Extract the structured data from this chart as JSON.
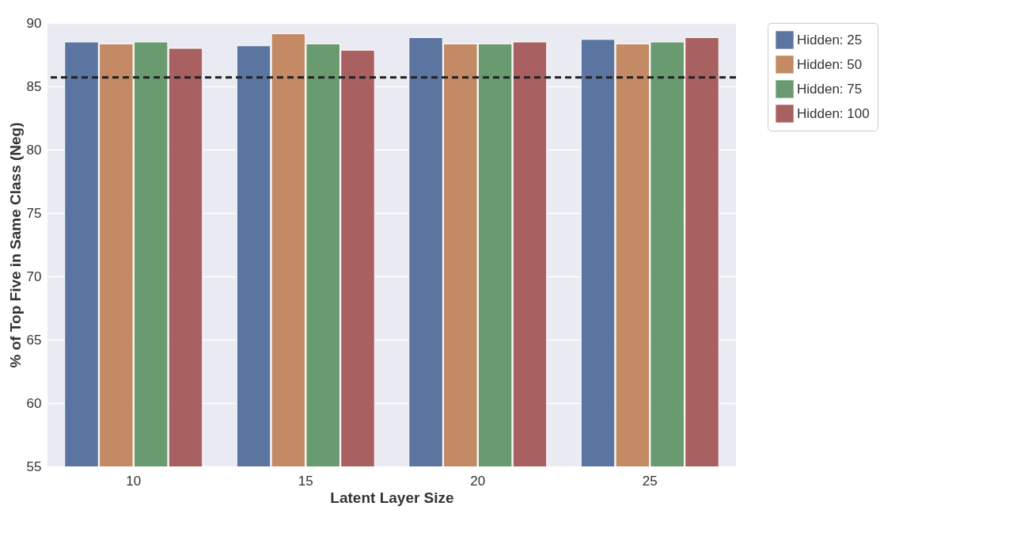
{
  "chart_data": {
    "type": "bar",
    "xlabel": "Latent Layer Size",
    "ylabel": "% of Top Five in Same Class (Neg)",
    "categories": [
      "10",
      "15",
      "20",
      "25"
    ],
    "series": [
      {
        "name": "Hidden: 25",
        "color": "#5b75a0",
        "values": [
          88.5,
          88.2,
          88.85,
          88.7
        ]
      },
      {
        "name": "Hidden: 50",
        "color": "#c38a65",
        "values": [
          88.35,
          89.15,
          88.35,
          88.35
        ]
      },
      {
        "name": "Hidden: 75",
        "color": "#6a9a6f",
        "values": [
          88.5,
          88.35,
          88.35,
          88.5
        ]
      },
      {
        "name": "Hidden: 100",
        "color": "#a96060",
        "values": [
          88.0,
          87.85,
          88.5,
          88.85
        ]
      }
    ],
    "ylim": [
      55,
      90
    ],
    "yticks": [
      55,
      60,
      65,
      70,
      75,
      80,
      85,
      90
    ],
    "grid": "y",
    "legend": "top right",
    "ref_lines": [
      {
        "axis": "y",
        "value": 85.7,
        "color": "#222222",
        "line_style": "dashed"
      }
    ]
  }
}
